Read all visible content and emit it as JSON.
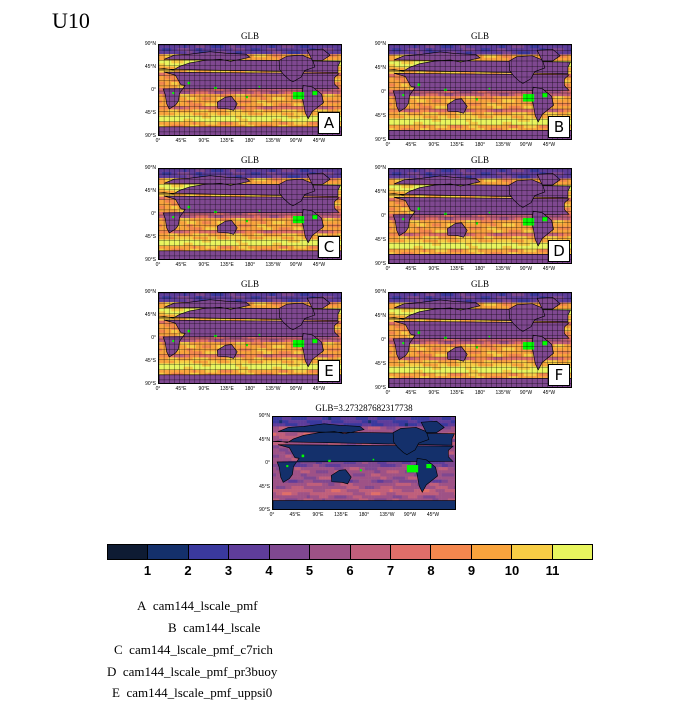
{
  "figure": {
    "title": "U10",
    "lat_labels": [
      "90°N",
      "45°N",
      "0°",
      "45°S",
      "90°S"
    ],
    "lon_labels": [
      "0°",
      "45°E",
      "90°E",
      "135°E",
      "180°",
      "135°W",
      "90°W",
      "45°W"
    ]
  },
  "panels": [
    {
      "letter": "A",
      "title": "GLB"
    },
    {
      "letter": "B",
      "title": "GLB"
    },
    {
      "letter": "C",
      "title": "GLB"
    },
    {
      "letter": "D",
      "title": "GLB"
    },
    {
      "letter": "E",
      "title": "GLB"
    },
    {
      "letter": "F",
      "title": "GLB"
    },
    {
      "letter": "",
      "title": "GLB=3.273287682317738"
    }
  ],
  "colorbar": {
    "labels": [
      "1",
      "2",
      "3",
      "4",
      "5",
      "6",
      "7",
      "8",
      "9",
      "10",
      "11"
    ],
    "colors": [
      "#0e1b33",
      "#14306b",
      "#3a399e",
      "#5f3d9a",
      "#7f4890",
      "#9e5286",
      "#bf5f7b",
      "#e06e69",
      "#f4874e",
      "#f9a43d",
      "#f7cd45",
      "#e8f55e"
    ]
  },
  "legend": [
    {
      "letter": "A",
      "name": "cam144_lscale_pmf"
    },
    {
      "letter": "B",
      "name": "cam144_lscale"
    },
    {
      "letter": "C",
      "name": "cam144_lscale_pmf_c7rich"
    },
    {
      "letter": "D",
      "name": "cam144_lscale_pmf_pr3buoy"
    },
    {
      "letter": "E",
      "name": "cam144_lscale_pmf_uppsi0"
    }
  ]
}
